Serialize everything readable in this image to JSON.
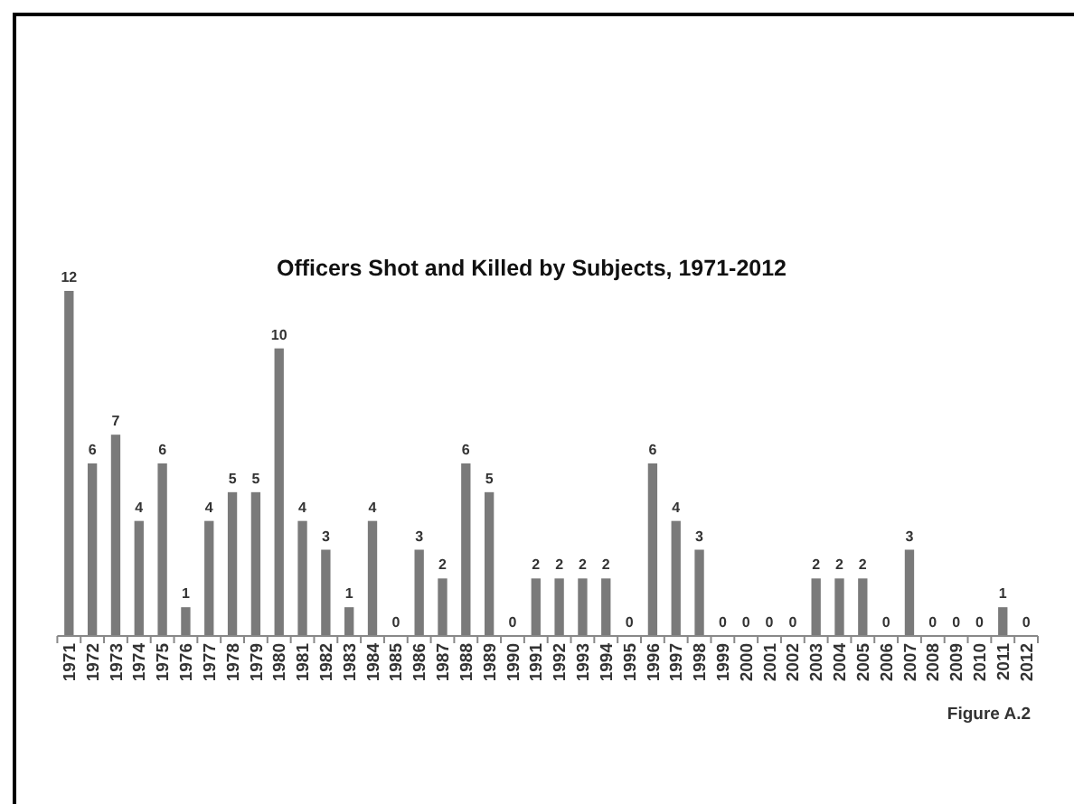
{
  "chart_data": {
    "type": "bar",
    "title": "Officers Shot and Killed by Subjects, 1971-2012",
    "categories": [
      "1971",
      "1972",
      "1973",
      "1974",
      "1975",
      "1976",
      "1977",
      "1978",
      "1979",
      "1980",
      "1981",
      "1982",
      "1983",
      "1984",
      "1985",
      "1986",
      "1987",
      "1988",
      "1989",
      "1990",
      "1991",
      "1992",
      "1993",
      "1994",
      "1995",
      "1996",
      "1997",
      "1998",
      "1999",
      "2000",
      "2001",
      "2002",
      "2003",
      "2004",
      "2005",
      "2006",
      "2007",
      "2008",
      "2009",
      "2010",
      "2011",
      "2012"
    ],
    "values": [
      12,
      6,
      7,
      4,
      6,
      1,
      4,
      5,
      5,
      10,
      4,
      3,
      1,
      4,
      0,
      3,
      2,
      6,
      5,
      0,
      2,
      2,
      2,
      2,
      0,
      6,
      4,
      3,
      0,
      0,
      0,
      0,
      2,
      2,
      2,
      0,
      3,
      0,
      0,
      0,
      1,
      0
    ],
    "color": "#7a7a7a",
    "data_labels": true,
    "annotations": [
      "Figure A.2"
    ]
  }
}
